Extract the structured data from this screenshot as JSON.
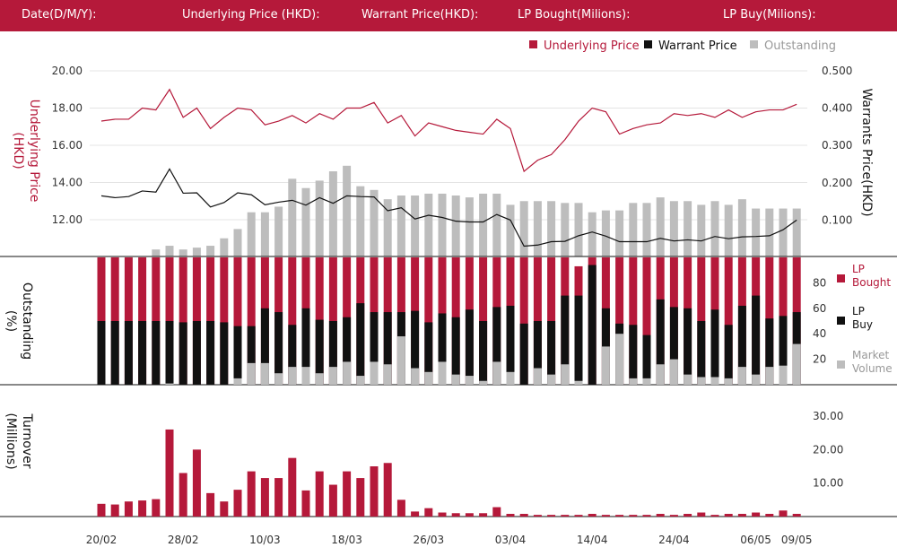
{
  "header": {
    "date_label": "Date(D/M/Y):",
    "underlying_label": "Underlying Price (HKD):",
    "warrant_label": "Warrant  Price(HKD):",
    "lp_bought_label": "LP Bought(Milions):",
    "lp_buy_label": "LP Buy(Milions):"
  },
  "legend_top": {
    "underlying": "Underlying Price",
    "warrant": "Warrant  Price",
    "outstanding": "Outstanding"
  },
  "legend_mid": {
    "lp_bought": [
      "LP",
      "Bought"
    ],
    "lp_buy": [
      "LP",
      "Buy"
    ],
    "market_volume": [
      "Market",
      "Volume"
    ]
  },
  "colors": {
    "brand": "#b5193a",
    "black": "#111111",
    "grey": "#bdbdbd",
    "header_text": "#ffffff"
  },
  "chart_data": [
    {
      "type": "line",
      "title": "",
      "ylabel_left": "Underlying Price (HKD)",
      "ylabel_right": "Warrants  Price(HKD)",
      "yticks_left": [
        "20.00",
        "18.00",
        "16.00",
        "14.00",
        "12.00"
      ],
      "yticks_right": [
        "0.500",
        "0.400",
        "0.300",
        "0.200",
        "0.100"
      ],
      "ylim_left": [
        10.3,
        20
      ],
      "ylim_right": [
        0,
        0.5
      ],
      "series": [
        {
          "name": "Underlying Price",
          "axis": "left",
          "color": "#b5193a",
          "values": [
            17.3,
            17.4,
            17.4,
            18.0,
            17.9,
            19.0,
            17.5,
            18.0,
            16.9,
            17.5,
            18.0,
            17.9,
            17.1,
            17.3,
            17.6,
            17.2,
            17.7,
            17.4,
            18.0,
            18.0,
            18.3,
            17.2,
            17.6,
            16.5,
            17.2,
            17.0,
            16.8,
            16.7,
            16.6,
            17.4,
            16.9,
            14.6,
            15.2,
            15.5,
            16.3,
            17.3,
            18.0,
            17.8,
            16.6,
            16.9,
            17.1,
            17.2,
            17.7,
            17.6,
            17.7,
            17.5,
            17.9,
            17.5,
            17.8,
            17.9,
            17.9,
            18.2
          ]
        },
        {
          "name": "Warrant  Price",
          "axis": "right",
          "color": "#111111",
          "values": [
            0.165,
            0.16,
            0.163,
            0.178,
            0.175,
            0.237,
            0.172,
            0.173,
            0.135,
            0.147,
            0.173,
            0.168,
            0.141,
            0.148,
            0.153,
            0.14,
            0.16,
            0.145,
            0.165,
            0.163,
            0.162,
            0.125,
            0.133,
            0.103,
            0.113,
            0.107,
            0.097,
            0.095,
            0.095,
            0.115,
            0.1,
            0.03,
            0.033,
            0.042,
            0.043,
            0.058,
            0.068,
            0.057,
            0.042,
            0.042,
            0.042,
            0.051,
            0.044,
            0.047,
            0.044,
            0.056,
            0.05,
            0.055,
            0.056,
            0.058,
            0.074,
            0.1
          ]
        },
        {
          "name": "Outstanding",
          "type": "bar",
          "axis": "left",
          "color": "#bdbdbd",
          "values": [
            null,
            null,
            null,
            null,
            10.4,
            10.6,
            10.4,
            10.5,
            10.6,
            11.0,
            11.5,
            12.4,
            12.4,
            12.7,
            14.2,
            13.7,
            14.1,
            14.6,
            14.9,
            13.8,
            13.6,
            13.1,
            13.3,
            13.3,
            13.4,
            13.4,
            13.3,
            13.2,
            13.4,
            13.4,
            12.8,
            13.0,
            13.0,
            13.0,
            12.9,
            12.9,
            12.4,
            12.5,
            12.5,
            12.9,
            12.9,
            13.2,
            13.0,
            13.0,
            12.8,
            13.0,
            12.8,
            13.1,
            12.6,
            12.6,
            12.6,
            12.6
          ]
        }
      ]
    },
    {
      "type": "bar",
      "ylabel": "Outstanding (%)",
      "yticks": [
        "80",
        "60",
        "40",
        "20"
      ],
      "ylim": [
        0,
        100
      ],
      "series": [
        {
          "name": "LP Bought",
          "color": "#b5193a",
          "values": [
            100,
            100,
            100,
            100,
            100,
            100,
            100,
            100,
            100,
            100,
            100,
            100,
            100,
            100,
            100,
            100,
            100,
            100,
            100,
            100,
            100,
            100,
            100,
            100,
            100,
            100,
            100,
            100,
            100,
            100,
            100,
            100,
            100,
            100,
            100,
            93,
            100,
            100,
            100,
            100,
            100,
            100,
            100,
            100,
            100,
            100,
            100,
            100,
            100,
            100,
            100,
            100
          ]
        },
        {
          "name": "LP Buy",
          "color": "#111111",
          "values": [
            50,
            50,
            50,
            50,
            50,
            50,
            49,
            50,
            50,
            49,
            46,
            46,
            60,
            57,
            47,
            60,
            51,
            50,
            53,
            64,
            57,
            57,
            57,
            58,
            49,
            56,
            53,
            59,
            50,
            61,
            62,
            48,
            50,
            50,
            70,
            70,
            94,
            60,
            48,
            47,
            39,
            67,
            61,
            60,
            50,
            59,
            47,
            62,
            70,
            52,
            54,
            57
          ]
        },
        {
          "name": "Market Volume",
          "color": "#bdbdbd",
          "values": [
            0,
            0,
            0,
            0,
            0,
            1,
            0,
            0,
            0,
            0,
            5,
            17,
            17,
            9,
            14,
            14,
            9,
            14,
            18,
            7,
            18,
            16,
            38,
            13,
            10,
            18,
            8,
            7,
            3,
            18,
            10,
            0,
            13,
            8,
            16,
            3,
            0,
            30,
            40,
            5,
            5,
            16,
            20,
            8,
            6,
            6,
            5,
            14,
            8,
            14,
            15,
            32
          ]
        }
      ]
    },
    {
      "type": "bar",
      "ylabel": "Turnover (Millions)",
      "yticks": [
        "30.00",
        "20.00",
        "10.00"
      ],
      "ylim": [
        0,
        30
      ],
      "series": [
        {
          "name": "Turnover",
          "color": "#b5193a",
          "values": [
            3.8,
            3.6,
            4.5,
            4.8,
            5.2,
            26.0,
            13.0,
            20.0,
            7.0,
            4.5,
            8.0,
            13.5,
            11.5,
            11.5,
            17.5,
            7.8,
            13.5,
            9.5,
            13.5,
            11.5,
            15.0,
            16.0,
            5.0,
            1.5,
            2.5,
            1.2,
            1.0,
            1.0,
            1.0,
            2.8,
            0.8,
            0.8,
            0.5,
            0.5,
            0.5,
            0.5,
            0.8,
            0.5,
            0.5,
            0.5,
            0.5,
            0.8,
            0.5,
            0.8,
            1.2,
            0.5,
            0.8,
            0.8,
            1.2,
            0.8,
            1.8,
            0.8
          ]
        }
      ]
    }
  ],
  "x_axis": {
    "tick_labels": [
      "20/02",
      "28/02",
      "10/03",
      "18/03",
      "26/03",
      "03/04",
      "14/04",
      "24/04",
      "06/05",
      "09/05"
    ],
    "tick_indices": [
      0,
      6,
      12,
      18,
      24,
      30,
      36,
      42,
      48,
      51
    ]
  }
}
